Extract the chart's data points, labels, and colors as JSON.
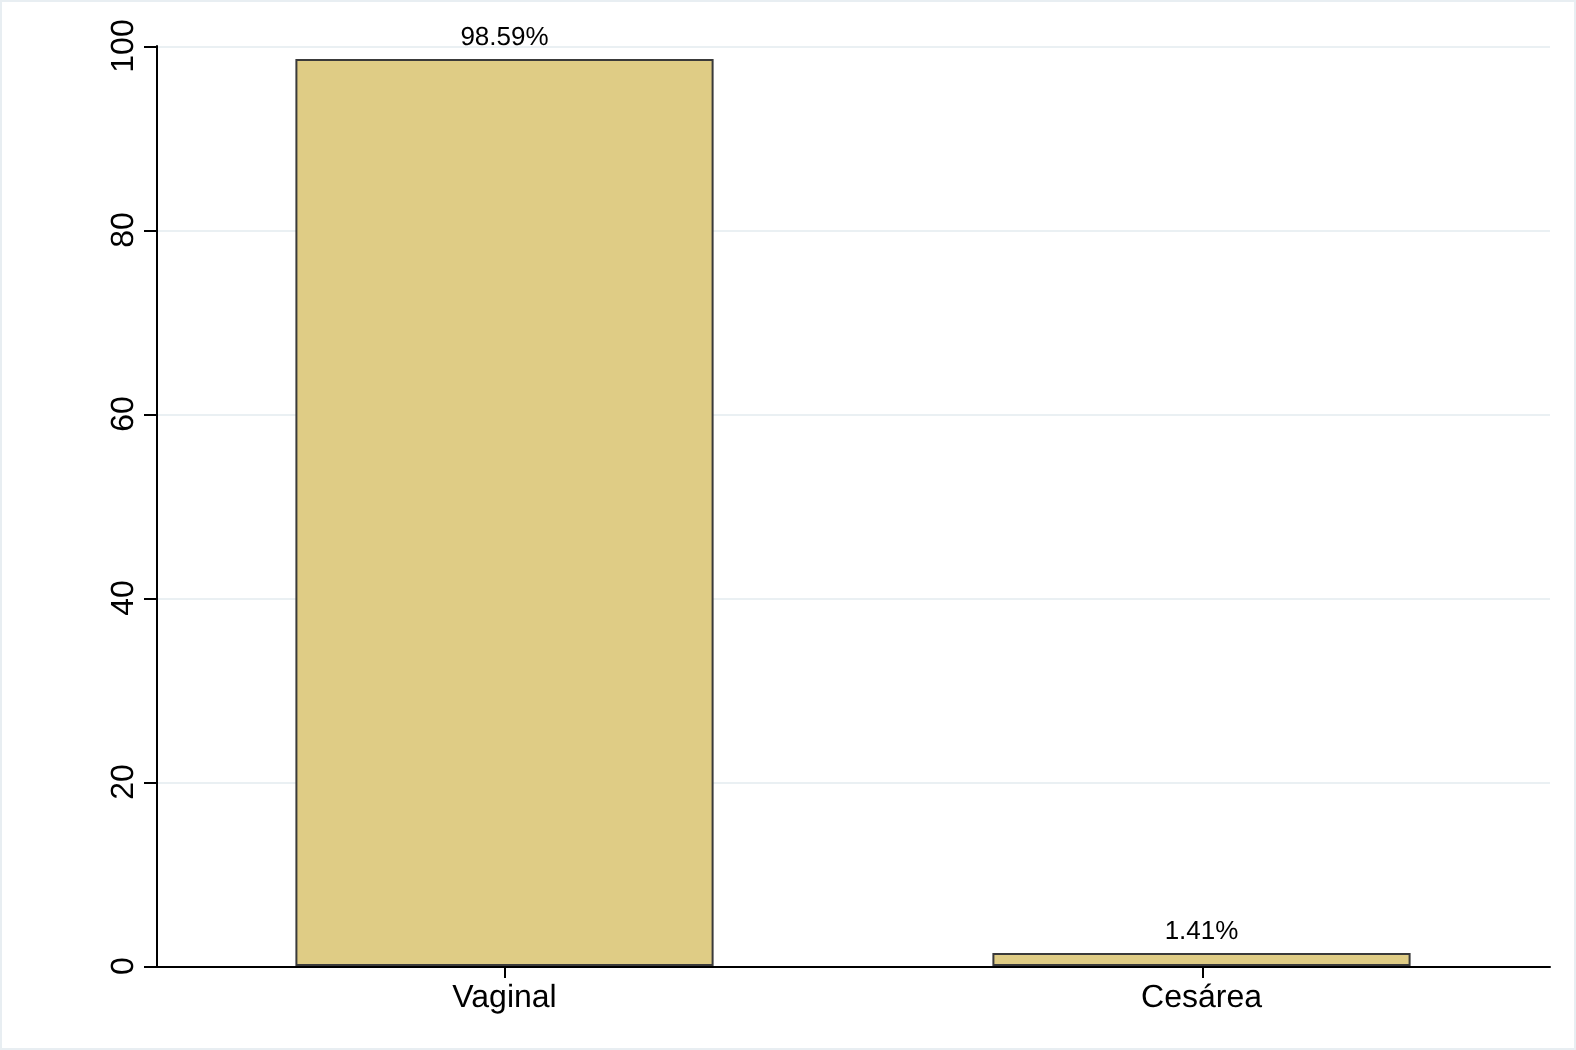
{
  "chart_data": {
    "type": "bar",
    "categories": [
      "Vaginal",
      "Cesárea"
    ],
    "values": [
      98.59,
      1.41
    ],
    "color": "#dfcc85",
    "value_labels": [
      "98.59%",
      "1.41%"
    ],
    "ylim": [
      0,
      100
    ],
    "yticks": [
      0,
      20,
      40,
      60,
      80,
      100
    ],
    "grid": "y"
  }
}
